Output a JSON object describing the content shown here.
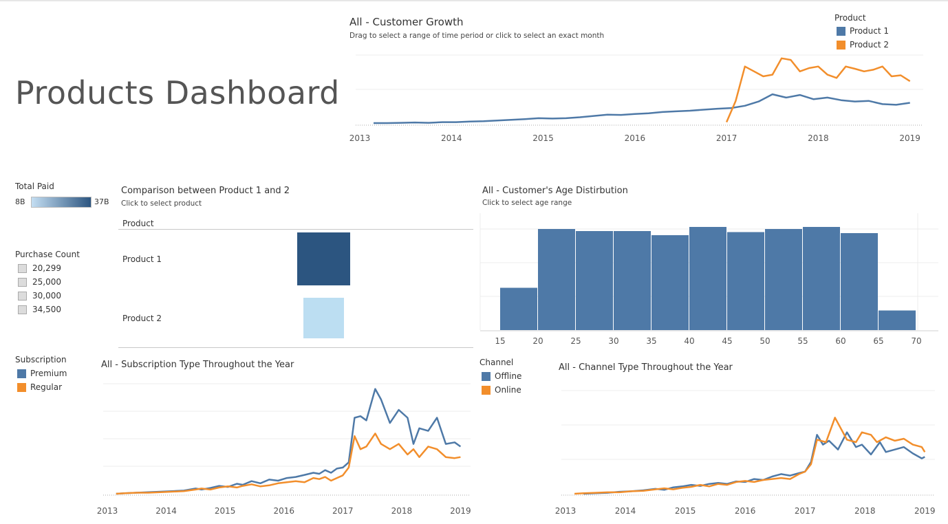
{
  "dashboard": {
    "title": "Products Dashboard"
  },
  "colors": {
    "product1": "#4e79a7",
    "product2": "#f28e2b",
    "premium": "#4e79a7",
    "regular": "#f28e2b",
    "offline": "#4e79a7",
    "online": "#f28e2b",
    "bar_dark": "#2c5580",
    "bar_light": "#bcdef2"
  },
  "growth": {
    "title": "All - Customer Growth",
    "subtitle": "Drag  to select a range of time period or click to select an exact month",
    "legend_title": "Product",
    "legend": [
      "Product 1",
      "Product 2"
    ]
  },
  "total_paid": {
    "title": "Total Paid",
    "min": "8B",
    "max": "37B"
  },
  "purchase_count": {
    "title": "Purchase Count",
    "items": [
      "20,299",
      "25,000",
      "30,000",
      "34,500"
    ]
  },
  "subscription": {
    "legend_title": "Subscription",
    "legend": [
      "Premium",
      "Regular"
    ],
    "title": "All - Subscription Type Throughout the Year"
  },
  "comparison": {
    "title": "Comparison between Product 1 and 2",
    "subtitle": "Click to select product",
    "header": "Product",
    "rows": [
      "Product 1",
      "Product 2"
    ]
  },
  "age": {
    "title": "All - Customer's Age Distirbution",
    "subtitle": "Click to select age range"
  },
  "channel": {
    "legend_title": "Channel",
    "legend": [
      "Offline",
      "Online"
    ],
    "title": "All - Channel Type Throughout the Year"
  },
  "chart_data": [
    {
      "id": "customer_growth",
      "type": "line",
      "x_ticks": [
        "2013",
        "2014",
        "2015",
        "2016",
        "2017",
        "2018",
        "2019"
      ],
      "x_range": [
        2013,
        2019.1
      ],
      "y_range": [
        0,
        210
      ],
      "grid": true,
      "series": [
        {
          "name": "Product 1",
          "points": [
            [
              2013.15,
              2
            ],
            [
              2013.3,
              2
            ],
            [
              2013.45,
              3
            ],
            [
              2013.6,
              4
            ],
            [
              2013.75,
              3
            ],
            [
              2013.9,
              5
            ],
            [
              2014.05,
              5
            ],
            [
              2014.2,
              7
            ],
            [
              2014.35,
              8
            ],
            [
              2014.5,
              10
            ],
            [
              2014.65,
              12
            ],
            [
              2014.8,
              14
            ],
            [
              2014.95,
              17
            ],
            [
              2015.1,
              16
            ],
            [
              2015.25,
              17
            ],
            [
              2015.4,
              20
            ],
            [
              2015.55,
              24
            ],
            [
              2015.7,
              28
            ],
            [
              2015.85,
              27
            ],
            [
              2016.0,
              30
            ],
            [
              2016.15,
              32
            ],
            [
              2016.3,
              36
            ],
            [
              2016.45,
              38
            ],
            [
              2016.6,
              40
            ],
            [
              2016.75,
              43
            ],
            [
              2016.9,
              46
            ],
            [
              2017.05,
              48
            ],
            [
              2017.2,
              55
            ],
            [
              2017.35,
              68
            ],
            [
              2017.5,
              90
            ],
            [
              2017.65,
              80
            ],
            [
              2017.8,
              88
            ],
            [
              2017.95,
              75
            ],
            [
              2018.1,
              80
            ],
            [
              2018.25,
              72
            ],
            [
              2018.4,
              68
            ],
            [
              2018.55,
              70
            ],
            [
              2018.7,
              60
            ],
            [
              2018.85,
              58
            ],
            [
              2019.0,
              64
            ]
          ]
        },
        {
          "name": "Product 2",
          "points": [
            [
              2017.0,
              5
            ],
            [
              2017.1,
              70
            ],
            [
              2017.2,
              175
            ],
            [
              2017.3,
              160
            ],
            [
              2017.4,
              145
            ],
            [
              2017.5,
              150
            ],
            [
              2017.6,
              200
            ],
            [
              2017.7,
              195
            ],
            [
              2017.8,
              160
            ],
            [
              2017.9,
              170
            ],
            [
              2018.0,
              175
            ],
            [
              2018.1,
              150
            ],
            [
              2018.2,
              140
            ],
            [
              2018.3,
              175
            ],
            [
              2018.4,
              168
            ],
            [
              2018.5,
              160
            ],
            [
              2018.6,
              165
            ],
            [
              2018.7,
              175
            ],
            [
              2018.8,
              145
            ],
            [
              2018.9,
              148
            ],
            [
              2019.0,
              130
            ]
          ]
        }
      ]
    },
    {
      "id": "product_comparison",
      "type": "table",
      "categories": [
        "Product 1",
        "Product 2"
      ],
      "purchase_count": [
        34500,
        20299
      ],
      "total_paid_billions": [
        37,
        8
      ]
    },
    {
      "id": "age_distribution",
      "type": "bar",
      "bins": [
        [
          15,
          20
        ],
        [
          20,
          25
        ],
        [
          25,
          30
        ],
        [
          30,
          35
        ],
        [
          35,
          40
        ],
        [
          40,
          45
        ],
        [
          45,
          50
        ],
        [
          50,
          55
        ],
        [
          55,
          60
        ],
        [
          60,
          65
        ],
        [
          65,
          70
        ]
      ],
      "x_ticks": [
        "15",
        "20",
        "25",
        "30",
        "35",
        "40",
        "45",
        "50",
        "55",
        "60",
        "65",
        "70"
      ],
      "values": [
        41,
        98,
        96,
        96,
        92,
        100,
        95,
        98,
        100,
        94,
        19
      ],
      "y_range": [
        0,
        110
      ],
      "grid": true
    },
    {
      "id": "subscription_type",
      "type": "line",
      "x_ticks": [
        "2013",
        "2014",
        "2015",
        "2016",
        "2017",
        "2018",
        "2019"
      ],
      "x_range": [
        2013,
        2019.1
      ],
      "y_range": [
        0,
        210
      ],
      "grid": true,
      "series": [
        {
          "name": "Premium",
          "points": [
            [
              2013.15,
              0
            ],
            [
              2013.3,
              1
            ],
            [
              2013.5,
              2
            ],
            [
              2013.7,
              3
            ],
            [
              2013.9,
              4
            ],
            [
              2014.1,
              5
            ],
            [
              2014.3,
              6
            ],
            [
              2014.5,
              10
            ],
            [
              2014.6,
              8
            ],
            [
              2014.75,
              11
            ],
            [
              2014.9,
              15
            ],
            [
              2015.05,
              13
            ],
            [
              2015.2,
              19
            ],
            [
              2015.3,
              17
            ],
            [
              2015.45,
              24
            ],
            [
              2015.6,
              20
            ],
            [
              2015.75,
              27
            ],
            [
              2015.9,
              25
            ],
            [
              2016.05,
              30
            ],
            [
              2016.2,
              32
            ],
            [
              2016.35,
              36
            ],
            [
              2016.5,
              40
            ],
            [
              2016.6,
              38
            ],
            [
              2016.7,
              45
            ],
            [
              2016.8,
              40
            ],
            [
              2016.9,
              48
            ],
            [
              2017.0,
              50
            ],
            [
              2017.1,
              60
            ],
            [
              2017.2,
              145
            ],
            [
              2017.3,
              148
            ],
            [
              2017.4,
              140
            ],
            [
              2017.55,
              200
            ],
            [
              2017.65,
              180
            ],
            [
              2017.8,
              135
            ],
            [
              2017.95,
              160
            ],
            [
              2018.1,
              145
            ],
            [
              2018.2,
              95
            ],
            [
              2018.3,
              125
            ],
            [
              2018.45,
              120
            ],
            [
              2018.6,
              145
            ],
            [
              2018.75,
              95
            ],
            [
              2018.9,
              98
            ],
            [
              2019.0,
              90
            ]
          ]
        },
        {
          "name": "Regular",
          "points": [
            [
              2013.15,
              0
            ],
            [
              2013.3,
              1
            ],
            [
              2013.5,
              2
            ],
            [
              2013.7,
              2
            ],
            [
              2013.9,
              3
            ],
            [
              2014.1,
              4
            ],
            [
              2014.3,
              5
            ],
            [
              2014.5,
              8
            ],
            [
              2014.6,
              10
            ],
            [
              2014.75,
              8
            ],
            [
              2014.9,
              12
            ],
            [
              2015.05,
              14
            ],
            [
              2015.2,
              12
            ],
            [
              2015.3,
              15
            ],
            [
              2015.45,
              18
            ],
            [
              2015.6,
              14
            ],
            [
              2015.75,
              16
            ],
            [
              2015.9,
              20
            ],
            [
              2016.05,
              22
            ],
            [
              2016.2,
              24
            ],
            [
              2016.35,
              22
            ],
            [
              2016.5,
              30
            ],
            [
              2016.6,
              28
            ],
            [
              2016.7,
              32
            ],
            [
              2016.8,
              25
            ],
            [
              2016.9,
              30
            ],
            [
              2017.0,
              35
            ],
            [
              2017.1,
              50
            ],
            [
              2017.2,
              110
            ],
            [
              2017.3,
              85
            ],
            [
              2017.4,
              90
            ],
            [
              2017.55,
              115
            ],
            [
              2017.65,
              95
            ],
            [
              2017.8,
              85
            ],
            [
              2017.95,
              95
            ],
            [
              2018.1,
              75
            ],
            [
              2018.2,
              85
            ],
            [
              2018.3,
              70
            ],
            [
              2018.45,
              90
            ],
            [
              2018.6,
              85
            ],
            [
              2018.75,
              70
            ],
            [
              2018.9,
              68
            ],
            [
              2019.0,
              70
            ]
          ]
        }
      ]
    },
    {
      "id": "channel_type",
      "type": "line",
      "x_ticks": [
        "2013",
        "2014",
        "2015",
        "2016",
        "2017",
        "2018",
        "2019"
      ],
      "x_range": [
        2013,
        2019.1
      ],
      "y_range": [
        0,
        210
      ],
      "grid": true,
      "series": [
        {
          "name": "Offline",
          "points": [
            [
              2013.3,
              0
            ],
            [
              2013.5,
              1
            ],
            [
              2013.7,
              2
            ],
            [
              2013.9,
              4
            ],
            [
              2014.1,
              5
            ],
            [
              2014.3,
              7
            ],
            [
              2014.5,
              10
            ],
            [
              2014.65,
              8
            ],
            [
              2014.8,
              13
            ],
            [
              2014.95,
              15
            ],
            [
              2015.1,
              18
            ],
            [
              2015.25,
              16
            ],
            [
              2015.4,
              20
            ],
            [
              2015.55,
              22
            ],
            [
              2015.7,
              20
            ],
            [
              2015.85,
              25
            ],
            [
              2016.0,
              24
            ],
            [
              2016.15,
              30
            ],
            [
              2016.3,
              28
            ],
            [
              2016.45,
              35
            ],
            [
              2016.6,
              40
            ],
            [
              2016.75,
              37
            ],
            [
              2016.9,
              42
            ],
            [
              2017.0,
              45
            ],
            [
              2017.1,
              65
            ],
            [
              2017.2,
              120
            ],
            [
              2017.3,
              100
            ],
            [
              2017.4,
              108
            ],
            [
              2017.55,
              90
            ],
            [
              2017.7,
              125
            ],
            [
              2017.85,
              95
            ],
            [
              2017.95,
              100
            ],
            [
              2018.1,
              80
            ],
            [
              2018.25,
              105
            ],
            [
              2018.35,
              85
            ],
            [
              2018.5,
              90
            ],
            [
              2018.65,
              95
            ],
            [
              2018.8,
              82
            ],
            [
              2018.95,
              72
            ],
            [
              2019.0,
              75
            ]
          ]
        },
        {
          "name": "Online",
          "points": [
            [
              2013.15,
              0
            ],
            [
              2013.3,
              1
            ],
            [
              2013.5,
              2
            ],
            [
              2013.7,
              3
            ],
            [
              2013.9,
              3
            ],
            [
              2014.1,
              5
            ],
            [
              2014.3,
              6
            ],
            [
              2014.5,
              9
            ],
            [
              2014.65,
              11
            ],
            [
              2014.8,
              9
            ],
            [
              2014.95,
              12
            ],
            [
              2015.1,
              14
            ],
            [
              2015.25,
              18
            ],
            [
              2015.4,
              15
            ],
            [
              2015.55,
              20
            ],
            [
              2015.7,
              18
            ],
            [
              2015.85,
              24
            ],
            [
              2016.0,
              26
            ],
            [
              2016.15,
              24
            ],
            [
              2016.3,
              28
            ],
            [
              2016.45,
              30
            ],
            [
              2016.6,
              32
            ],
            [
              2016.75,
              30
            ],
            [
              2016.9,
              40
            ],
            [
              2017.0,
              45
            ],
            [
              2017.1,
              60
            ],
            [
              2017.2,
              110
            ],
            [
              2017.35,
              105
            ],
            [
              2017.5,
              155
            ],
            [
              2017.7,
              110
            ],
            [
              2017.85,
              105
            ],
            [
              2017.95,
              125
            ],
            [
              2018.1,
              120
            ],
            [
              2018.2,
              105
            ],
            [
              2018.35,
              115
            ],
            [
              2018.5,
              108
            ],
            [
              2018.65,
              112
            ],
            [
              2018.8,
              100
            ],
            [
              2018.95,
              95
            ],
            [
              2019.0,
              85
            ]
          ]
        }
      ]
    }
  ]
}
